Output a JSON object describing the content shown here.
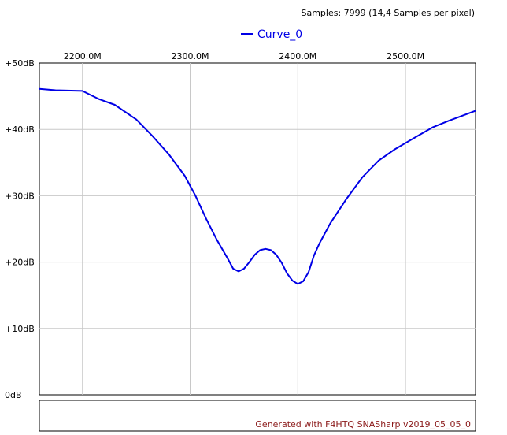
{
  "header": {
    "samples_text": "Samples: 7999 (14,4 Samples per pixel)"
  },
  "legend": {
    "label": "Curve_0"
  },
  "footer": {
    "generated_text": "Generated with F4HTQ SNASharp v2019_05_05_0"
  },
  "colors": {
    "curve": "#0000e6",
    "grid": "#c8c8c8",
    "footer_text": "#8b1a1a",
    "background": "#ffffff"
  },
  "chart_data": {
    "type": "line",
    "title": "",
    "xlabel": "",
    "ylabel": "",
    "x_unit": "MHz",
    "xlim": [
      2160,
      2565
    ],
    "ylim": [
      0,
      50
    ],
    "grid": true,
    "legend_position": "top-center",
    "x_ticks": [
      2200,
      2300,
      2400,
      2500
    ],
    "x_tick_labels": [
      "2200.0M",
      "2300.0M",
      "2400.0M",
      "2500.0M"
    ],
    "y_ticks": [
      0,
      10,
      20,
      30,
      40,
      50
    ],
    "y_tick_labels": [
      "0dB",
      "+10dB",
      "+20dB",
      "+30dB",
      "+40dB",
      "+50dB"
    ],
    "series": [
      {
        "name": "Curve_0",
        "x": [
          2160,
          2175,
          2200,
          2215,
          2230,
          2250,
          2265,
          2280,
          2295,
          2305,
          2315,
          2325,
          2335,
          2340,
          2345,
          2350,
          2355,
          2360,
          2365,
          2370,
          2375,
          2380,
          2385,
          2390,
          2395,
          2400,
          2405,
          2410,
          2415,
          2420,
          2430,
          2445,
          2460,
          2475,
          2490,
          2510,
          2525,
          2540,
          2555,
          2565
        ],
        "y": [
          46.1,
          45.9,
          45.8,
          44.6,
          43.7,
          41.5,
          39.0,
          36.3,
          33.0,
          30.0,
          26.5,
          23.3,
          20.5,
          19.0,
          18.6,
          19.0,
          20.0,
          21.1,
          21.8,
          22.0,
          21.8,
          21.1,
          19.9,
          18.3,
          17.2,
          16.7,
          17.1,
          18.5,
          21.0,
          22.8,
          25.8,
          29.5,
          32.8,
          35.3,
          37.0,
          38.9,
          40.3,
          41.3,
          42.2,
          42.8
        ]
      }
    ]
  }
}
